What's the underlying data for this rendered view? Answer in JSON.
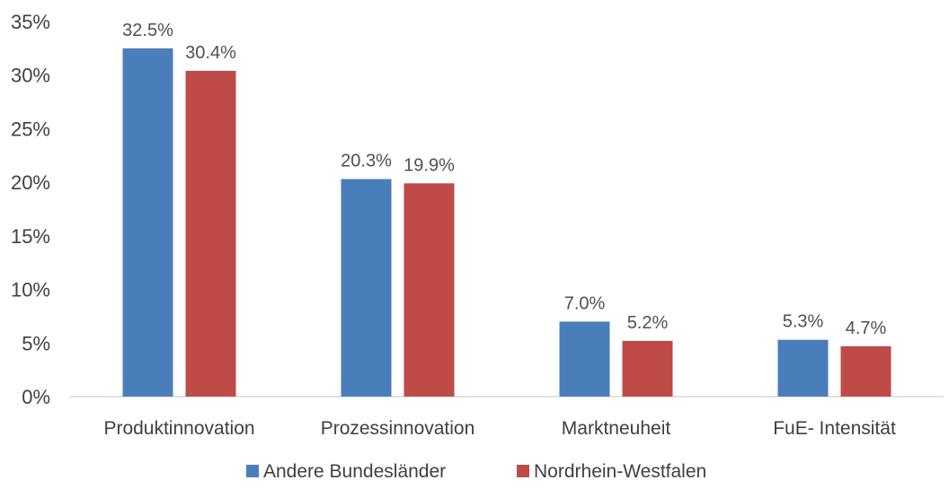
{
  "chart_data": {
    "type": "bar",
    "categories": [
      "Produktinnovation",
      "Prozessinnovation",
      "Marktneuheit",
      "FuE- Intensität"
    ],
    "series": [
      {
        "name": "Andere Bundesländer",
        "color": "#4A7EBB",
        "values": [
          32.5,
          20.3,
          7.0,
          5.3
        ],
        "labels": [
          "32.5%",
          "20.3%",
          "7.0%",
          "5.3%"
        ]
      },
      {
        "name": "Nordrhein-Westfalen",
        "color": "#BE4B48",
        "values": [
          30.4,
          19.9,
          5.2,
          4.7
        ],
        "labels": [
          "30.4%",
          "19.9%",
          "5.2%",
          "4.7%"
        ]
      }
    ],
    "ylim": [
      0,
      35
    ],
    "yticks": [
      0,
      5,
      10,
      15,
      20,
      25,
      30,
      35
    ],
    "ytick_labels": [
      "0%",
      "5%",
      "10%",
      "15%",
      "20%",
      "25%",
      "30%",
      "35%"
    ],
    "legend_position": "bottom",
    "grid": false,
    "axis_color": "#D9D9D9"
  }
}
